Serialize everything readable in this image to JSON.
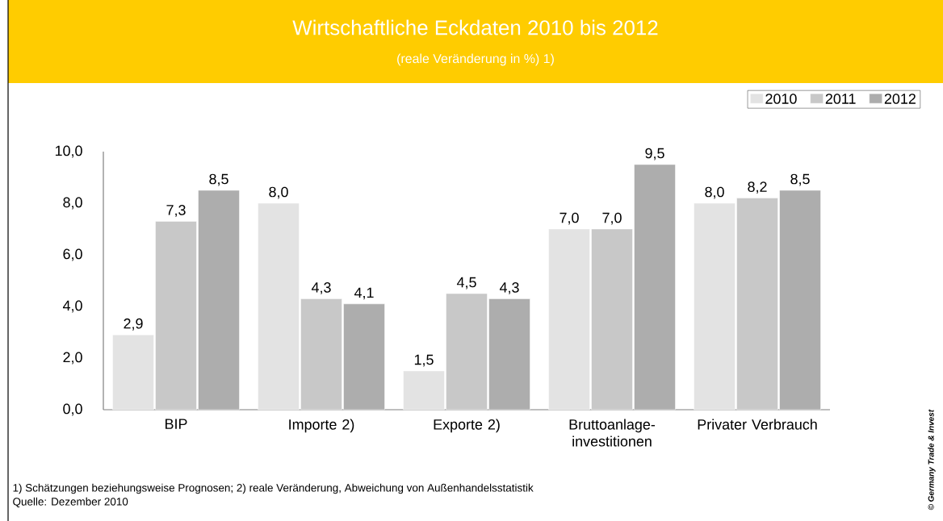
{
  "chart_data": {
    "type": "bar",
    "title": "Wirtschaftliche Eckdaten 2010 bis 2012",
    "subtitle": "(reale Veränderung in %) 1)",
    "categories": [
      "BIP",
      "Importe 2)",
      "Exporte 2)",
      "Bruttoanlage-investitionen",
      "Privater Verbrauch"
    ],
    "series": [
      {
        "name": "2010",
        "color": "#e3e3e3",
        "values": [
          2.9,
          8.0,
          1.5,
          7.0,
          8.0
        ],
        "value_labels": [
          "2,9",
          "8,0",
          "1,5",
          "7,0",
          "8,0"
        ]
      },
      {
        "name": "2011",
        "color": "#c8c8c8",
        "values": [
          7.3,
          4.3,
          4.5,
          7.0,
          8.2
        ],
        "value_labels": [
          "7,3",
          "4,3",
          "4,5",
          "7,0",
          "8,2"
        ]
      },
      {
        "name": "2012",
        "color": "#adadad",
        "values": [
          8.5,
          4.1,
          4.3,
          9.5,
          8.5
        ],
        "value_labels": [
          "8,5",
          "4,1",
          "4,3",
          "9,5",
          "8,5"
        ]
      }
    ],
    "ylim": [
      0,
      10
    ],
    "yticks": [
      {
        "value": 0,
        "label": "0,0"
      },
      {
        "value": 2,
        "label": "2,0"
      },
      {
        "value": 4,
        "label": "4,0"
      },
      {
        "value": 6,
        "label": "6,0"
      },
      {
        "value": 8,
        "label": "8,0"
      },
      {
        "value": 10,
        "label": "10,0"
      }
    ],
    "grid": false,
    "legend": "top right",
    "annotations": [
      "1) Schätzungen beziehungsweise Prognosen; 2) reale Veränderung, Abweichung von Außenhandelsstatistik",
      "Quelle: Dezember 2010",
      "© Germany Trade & Invest"
    ]
  }
}
